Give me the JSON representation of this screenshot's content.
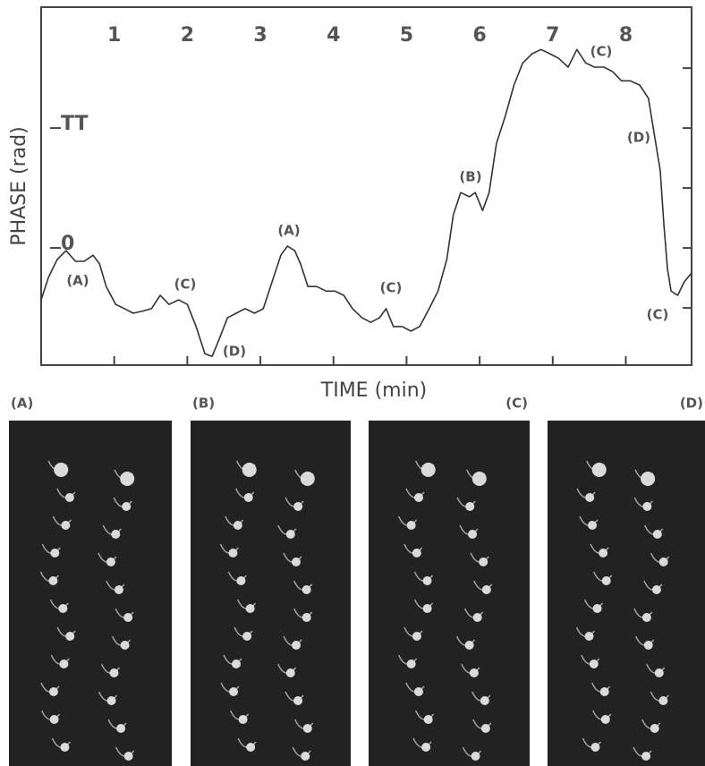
{
  "chart_data": {
    "type": "line",
    "xlabel": "TIME (min)",
    "ylabel": "PHASE (rad)",
    "xlim": [
      0,
      8.9
    ],
    "xticks": [
      1,
      2,
      3,
      4,
      5,
      6,
      7,
      8
    ],
    "ylim": [
      -3.07,
      6.31
    ],
    "yticks": [
      0,
      {
        "value": 3.1416,
        "label": "TT"
      }
    ],
    "yticks_unlabeled": [
      -1.5708,
      1.5708,
      4.7124
    ],
    "color": "#333333",
    "x": [
      0.0,
      0.1,
      0.22,
      0.34,
      0.47,
      0.59,
      0.71,
      0.8,
      0.89,
      1.02,
      1.14,
      1.26,
      1.38,
      1.51,
      1.63,
      1.75,
      1.88,
      2.0,
      2.12,
      2.24,
      2.34,
      2.43,
      2.55,
      2.67,
      2.79,
      2.92,
      3.04,
      3.16,
      3.28,
      3.37,
      3.47,
      3.55,
      3.65,
      3.77,
      3.9,
      4.02,
      4.14,
      4.26,
      4.39,
      4.51,
      4.63,
      4.72,
      4.82,
      4.94,
      5.06,
      5.18,
      5.31,
      5.43,
      5.55,
      5.64,
      5.74,
      5.86,
      5.94,
      6.04,
      6.13,
      6.23,
      6.35,
      6.47,
      6.59,
      6.72,
      6.84,
      6.96,
      7.08,
      7.21,
      7.33,
      7.45,
      7.57,
      7.7,
      7.82,
      7.94,
      8.06,
      8.19,
      8.31,
      8.39,
      8.47,
      8.52,
      8.57,
      8.62,
      8.71,
      8.8,
      8.9
    ],
    "values": [
      -1.36,
      -0.77,
      -0.3,
      -0.07,
      -0.35,
      -0.35,
      -0.19,
      -0.42,
      -1.01,
      -1.48,
      -1.59,
      -1.71,
      -1.66,
      -1.59,
      -1.24,
      -1.48,
      -1.36,
      -1.48,
      -2.06,
      -2.77,
      -2.84,
      -2.42,
      -1.83,
      -1.71,
      -1.59,
      -1.71,
      -1.59,
      -0.89,
      -0.19,
      0.05,
      -0.07,
      -0.42,
      -1.01,
      -1.01,
      -1.13,
      -1.13,
      -1.24,
      -1.59,
      -1.83,
      -1.95,
      -1.83,
      -1.59,
      -2.06,
      -2.06,
      -2.18,
      -2.06,
      -1.59,
      -1.13,
      -0.3,
      0.87,
      1.45,
      1.34,
      1.45,
      0.98,
      1.45,
      2.74,
      3.45,
      4.27,
      4.85,
      5.09,
      5.2,
      5.09,
      4.97,
      4.74,
      5.2,
      4.85,
      4.74,
      4.74,
      4.62,
      4.38,
      4.38,
      4.27,
      3.92,
      2.98,
      2.04,
      0.63,
      -0.54,
      -1.13,
      -1.24,
      -0.89,
      -0.66
    ],
    "annotations": [
      "(A)",
      "(C)",
      "(D)",
      "(A)",
      "(C)",
      "(B)",
      "(C)",
      "(D)",
      "(C)"
    ]
  },
  "panels": [
    "(A)",
    "(B)",
    "(C)",
    "(D)"
  ]
}
